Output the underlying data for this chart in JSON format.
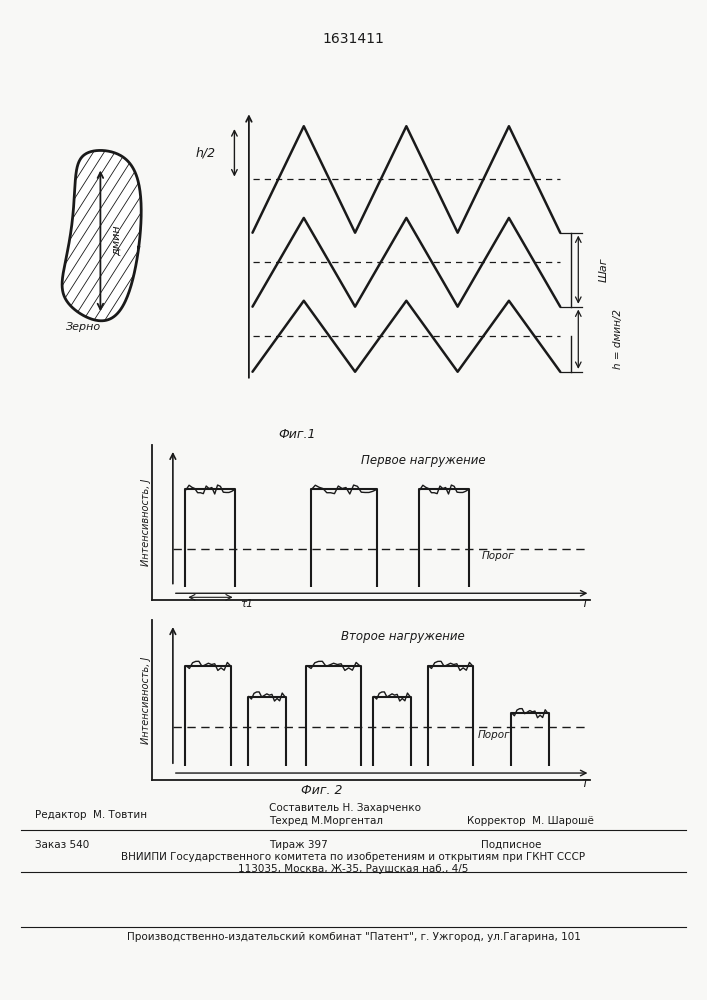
{
  "title": "1631411",
  "fig1_label": "Фиг.1",
  "fig2_label": "Фиг. 2",
  "grain_label": "Зерно",
  "dmin_label": "дмин",
  "h2_label": "h/2",
  "shag_label": "Шаг",
  "h_dmin2_label": "h = dмин/2",
  "fig2a_title": "Первое нагружение",
  "fig2b_title": "Второе нагружение",
  "porog_label": "Порог",
  "ylabel_label": "Интенсивность, J",
  "t1_label": "τ1",
  "T_label": "T",
  "bg_color": "#f8f8f6",
  "line_color": "#1a1a1a"
}
